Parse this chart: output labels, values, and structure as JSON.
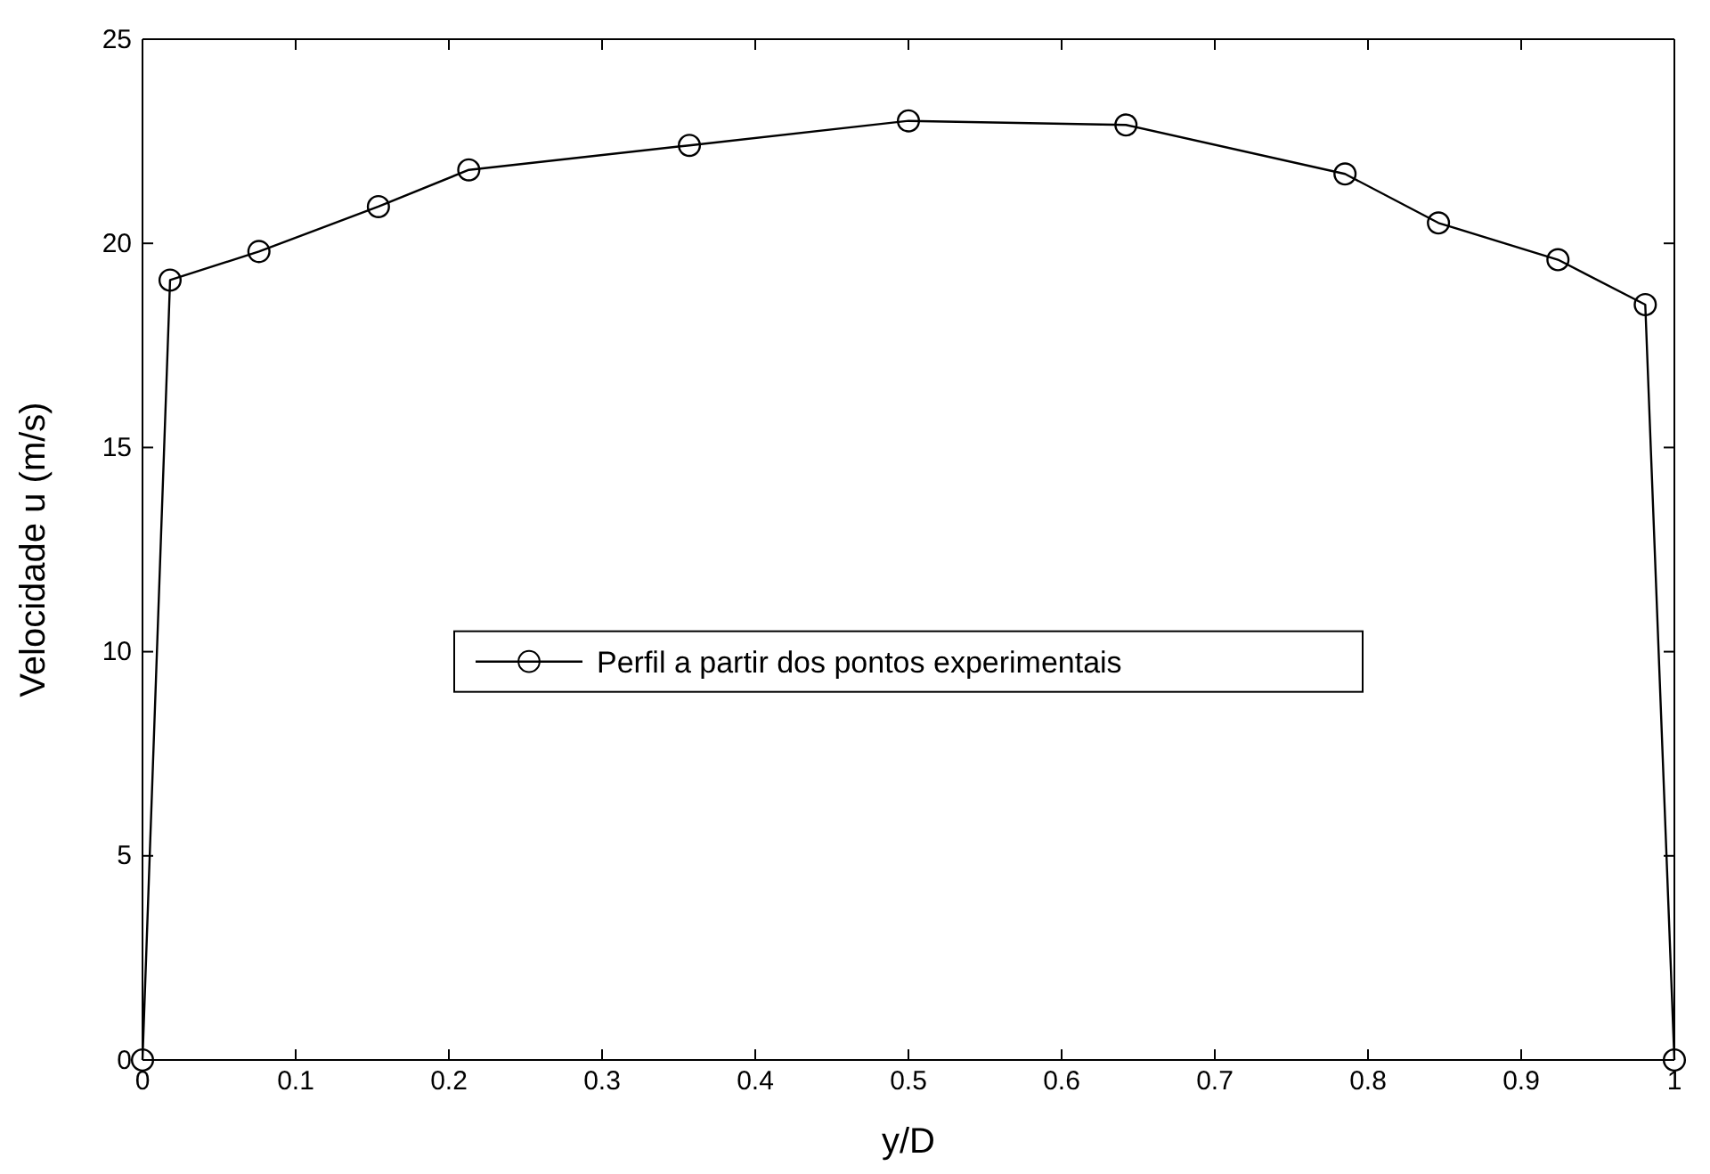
{
  "chart_data": {
    "type": "line",
    "xlabel": "y/D",
    "ylabel": "Velocidade u (m/s)",
    "x": [
      0,
      0.018,
      0.076,
      0.154,
      0.213,
      0.357,
      0.5,
      0.642,
      0.785,
      0.846,
      0.924,
      0.981,
      1
    ],
    "series": [
      {
        "name": "Perfil a partir dos pontos experimentais",
        "color": "#000000",
        "values": [
          0,
          19.1,
          19.8,
          20.9,
          21.8,
          22.4,
          23.0,
          22.9,
          21.7,
          20.5,
          19.6,
          18.5,
          0
        ]
      }
    ],
    "xlim": [
      0,
      1
    ],
    "xticks": [
      0,
      0.1,
      0.2,
      0.3,
      0.4,
      0.5,
      0.6,
      0.7,
      0.8,
      0.9,
      1
    ],
    "ylim": [
      0,
      25
    ],
    "yticks": [
      0,
      5,
      10,
      15,
      20,
      25
    ],
    "grid": false,
    "legend": "center",
    "marker": "circle",
    "line_style": "solid"
  }
}
